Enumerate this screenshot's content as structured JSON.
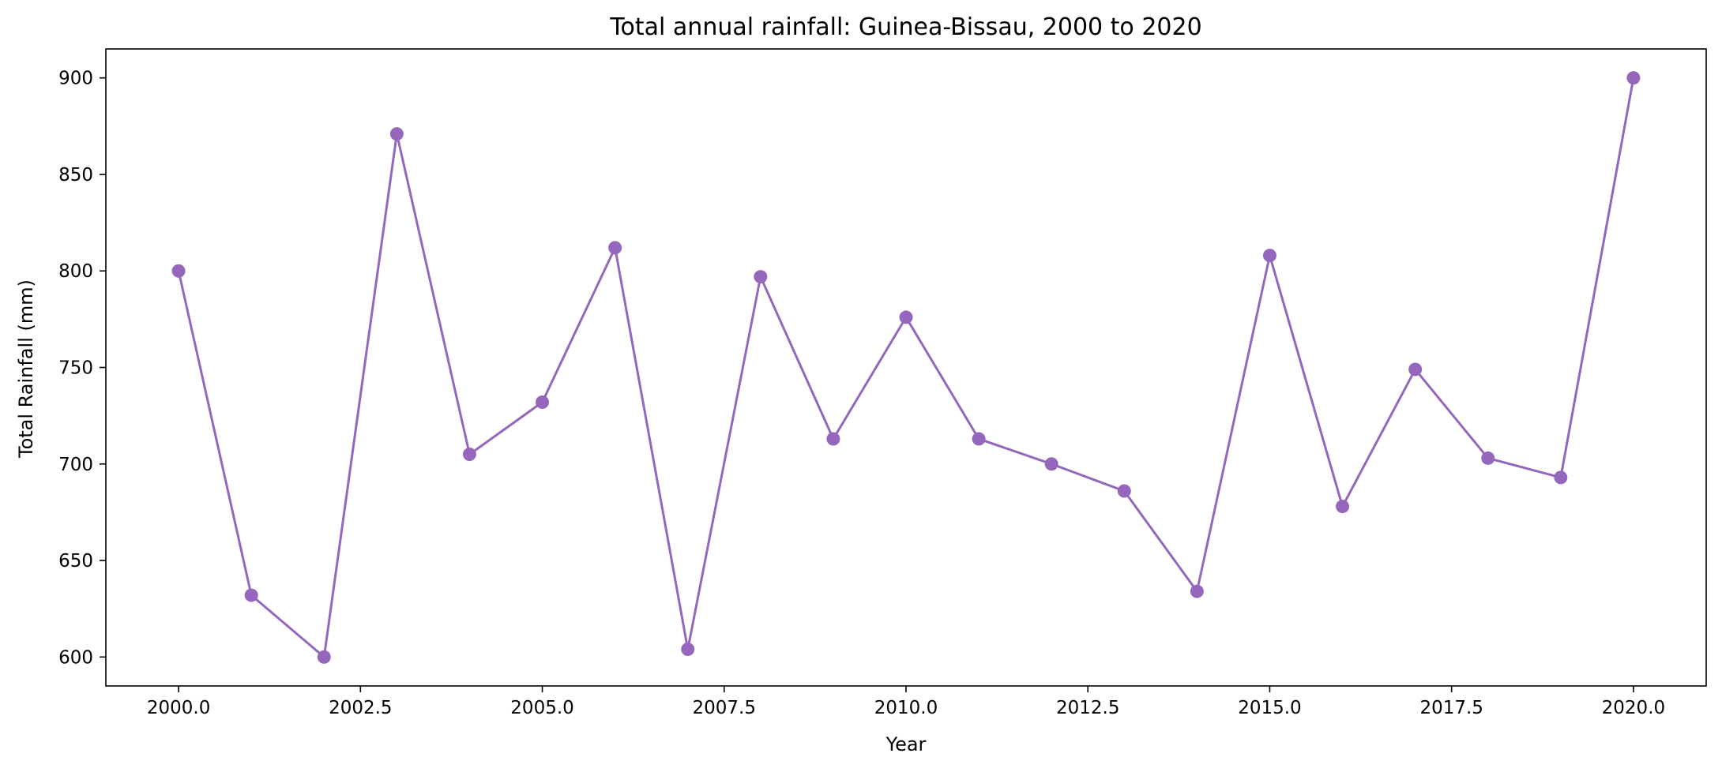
{
  "chart_data": {
    "type": "line",
    "title": "Total annual rainfall: Guinea-Bissau, 2000 to 2020",
    "xlabel": "Year",
    "ylabel": "Total Rainfall (mm)",
    "xlim": [
      1999,
      2021
    ],
    "ylim": [
      585,
      915
    ],
    "x_ticks": [
      2000.0,
      2002.5,
      2005.0,
      2007.5,
      2010.0,
      2012.5,
      2015.0,
      2017.5,
      2020.0
    ],
    "x_tick_labels": [
      "2000.0",
      "2002.5",
      "2005.0",
      "2007.5",
      "2010.0",
      "2012.5",
      "2015.0",
      "2017.5",
      "2020.0"
    ],
    "y_ticks": [
      600,
      650,
      700,
      750,
      800,
      850,
      900
    ],
    "y_tick_labels": [
      "600",
      "650",
      "700",
      "750",
      "800",
      "850",
      "900"
    ],
    "grid": false,
    "color": "#9467bd",
    "series": [
      {
        "x": [
          2000,
          2001,
          2002,
          2003,
          2004,
          2005,
          2006,
          2007,
          2008,
          2009,
          2010,
          2011,
          2012,
          2013,
          2014,
          2015,
          2016,
          2017,
          2018,
          2019,
          2020
        ],
        "values": [
          800,
          632,
          600,
          871,
          705,
          732,
          812,
          604,
          797,
          713,
          776,
          713,
          700,
          686,
          634,
          808,
          678,
          749,
          703,
          693,
          900
        ]
      }
    ]
  }
}
